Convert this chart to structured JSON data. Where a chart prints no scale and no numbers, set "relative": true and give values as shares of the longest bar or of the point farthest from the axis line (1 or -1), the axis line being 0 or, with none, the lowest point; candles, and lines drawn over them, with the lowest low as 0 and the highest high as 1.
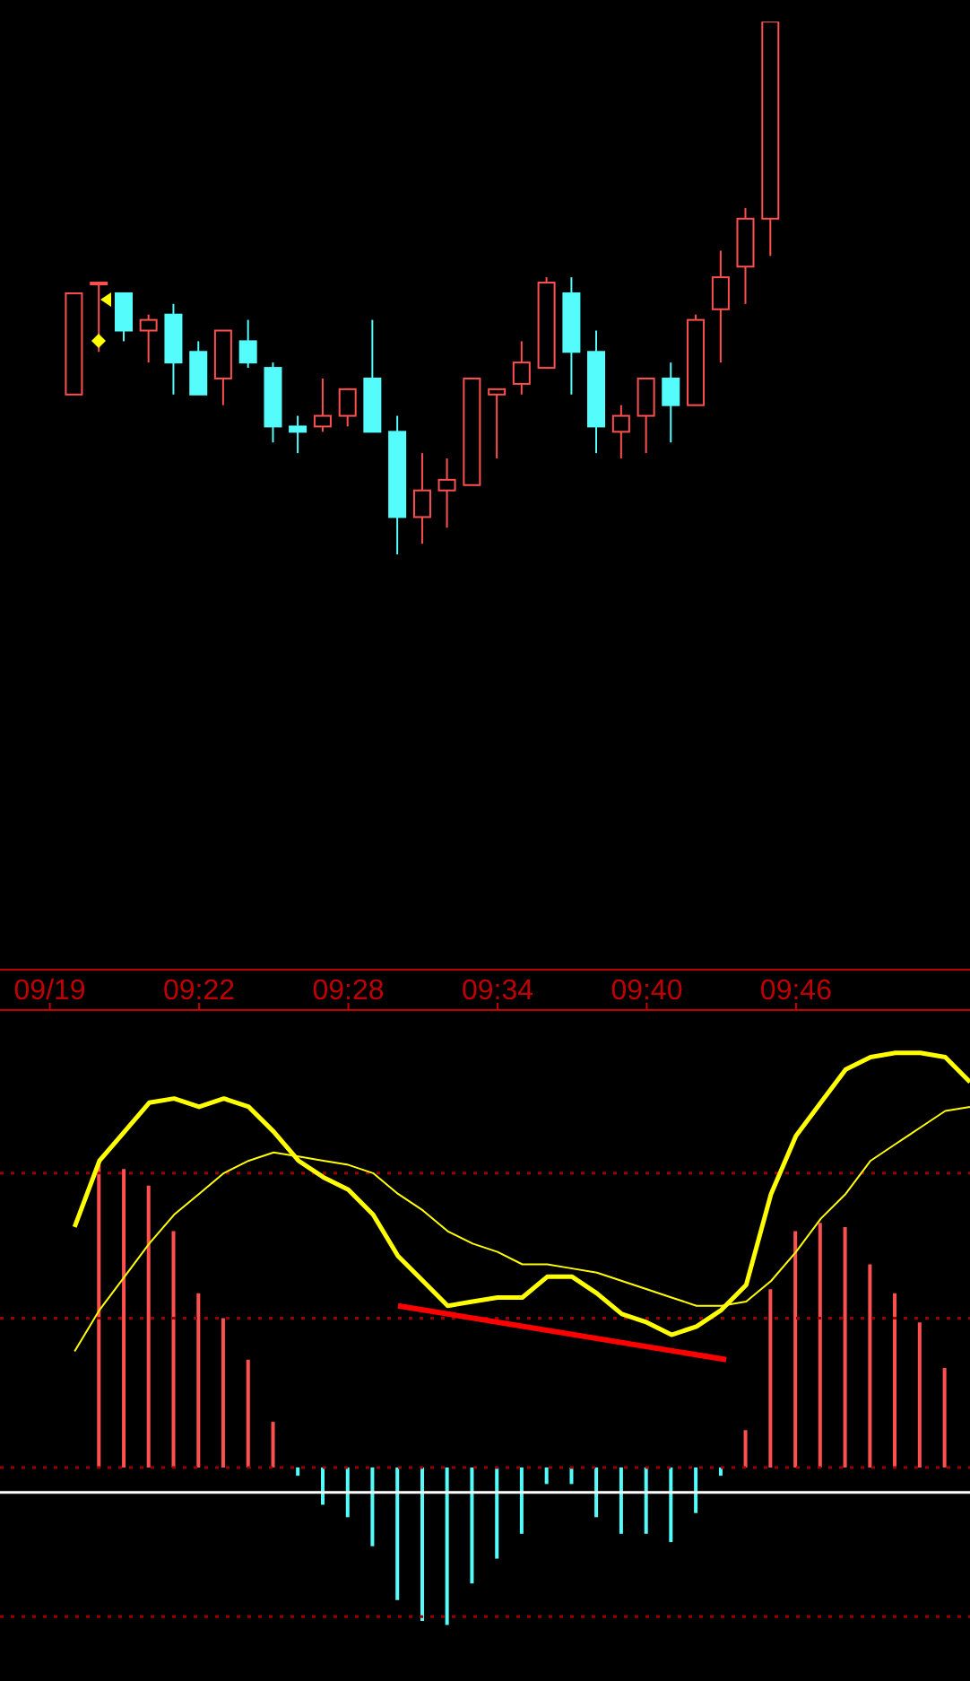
{
  "chart_data": [
    {
      "type": "candlestick",
      "relative": true,
      "xlim": [
        9.2333,
        9.8833
      ],
      "x": [
        9.2833,
        9.3,
        9.3167,
        9.3333,
        9.35,
        9.3667,
        9.3833,
        9.4,
        9.4167,
        9.4333,
        9.45,
        9.4667,
        9.4833,
        9.5,
        9.5167,
        9.5333,
        9.55,
        9.5667,
        9.5833,
        9.6,
        9.6167,
        9.6333,
        9.65,
        9.6667,
        9.6833,
        9.7,
        9.7167,
        9.7333,
        9.75
      ],
      "ohlc": [
        [
          0.3,
          0.49,
          0.3,
          0.49
        ],
        [
          0.51,
          0.51,
          0.38,
          0.51
        ],
        [
          0.49,
          0.49,
          0.4,
          0.42
        ],
        [
          0.42,
          0.45,
          0.36,
          0.44
        ],
        [
          0.45,
          0.47,
          0.3,
          0.36
        ],
        [
          0.38,
          0.4,
          0.3,
          0.3
        ],
        [
          0.33,
          0.42,
          0.28,
          0.42
        ],
        [
          0.4,
          0.44,
          0.35,
          0.36
        ],
        [
          0.35,
          0.36,
          0.21,
          0.24
        ],
        [
          0.24,
          0.26,
          0.19,
          0.23
        ],
        [
          0.24,
          0.33,
          0.23,
          0.26
        ],
        [
          0.26,
          0.31,
          0.24,
          0.31
        ],
        [
          0.33,
          0.44,
          0.23,
          0.23
        ],
        [
          0.23,
          0.26,
          0,
          0.07
        ],
        [
          0.07,
          0.19,
          0.02,
          0.12
        ],
        [
          0.12,
          0.18,
          0.05,
          0.14
        ],
        [
          0.13,
          0.33,
          0.13,
          0.33
        ],
        [
          0.3,
          0.31,
          0.18,
          0.31
        ],
        [
          0.32,
          0.4,
          0.3,
          0.36
        ],
        [
          0.35,
          0.52,
          0.35,
          0.51
        ],
        [
          0.49,
          0.52,
          0.3,
          0.38
        ],
        [
          0.38,
          0.42,
          0.19,
          0.24
        ],
        [
          0.23,
          0.28,
          0.18,
          0.26
        ],
        [
          0.26,
          0.33,
          0.19,
          0.33
        ],
        [
          0.33,
          0.36,
          0.21,
          0.28
        ],
        [
          0.28,
          0.45,
          0.28,
          0.44
        ],
        [
          0.46,
          0.57,
          0.36,
          0.52
        ],
        [
          0.54,
          0.65,
          0.47,
          0.63
        ],
        [
          0.63,
          1,
          0.56,
          1
        ]
      ],
      "colors": [
        "#ff5050",
        "#ff5050",
        "#54fcfc",
        "#ff5050",
        "#54fcfc",
        "#54fcfc",
        "#ff5050",
        "#54fcfc",
        "#54fcfc",
        "#54fcfc",
        "#ff5050",
        "#ff5050",
        "#54fcfc",
        "#54fcfc",
        "#ff5050",
        "#ff5050",
        "#ff5050",
        "#ff5050",
        "#ff5050",
        "#ff5050",
        "#54fcfc",
        "#54fcfc",
        "#ff5050",
        "#ff5050",
        "#54fcfc",
        "#ff5050",
        "#ff5050",
        "#ff5050",
        "#ff5050"
      ]
    },
    {
      "type": "bar",
      "relative": true,
      "xlim": [
        9.2333,
        9.8833
      ],
      "xticks": [
        {
          "value": 9.2667,
          "label": "09/19"
        },
        {
          "value": 9.3667,
          "label": "09:22"
        },
        {
          "value": 9.4667,
          "label": "09:28"
        },
        {
          "value": 9.5667,
          "label": "09:34"
        },
        {
          "value": 9.6667,
          "label": "09:40"
        },
        {
          "value": 9.7667,
          "label": "09:46"
        }
      ],
      "ref_lines": [
        {
          "axis": "y",
          "value": 0.71,
          "color": "#9a0000",
          "line_style": "dotted"
        },
        {
          "axis": "y",
          "value": 0.36,
          "color": "#9a0000",
          "line_style": "dotted"
        },
        {
          "axis": "y",
          "value": 0,
          "color": "#9a0000",
          "line_style": "dotted"
        },
        {
          "axis": "y",
          "value": -0.36,
          "color": "#9a0000",
          "line_style": "dotted"
        },
        {
          "axis": "y",
          "value": -0.06,
          "color": "#ffffff",
          "line_style": "solid"
        }
      ],
      "series": [
        {
          "type": "bar",
          "x": [
            9.3,
            9.3167,
            9.3333,
            9.35,
            9.3667,
            9.3833,
            9.4,
            9.4167,
            9.4333,
            9.45,
            9.4667,
            9.4833,
            9.5,
            9.5167,
            9.5333,
            9.55,
            9.5667,
            9.5833,
            9.6,
            9.6167,
            9.6333,
            9.65,
            9.6667,
            9.6833,
            9.7,
            9.7167,
            9.7333,
            9.75,
            9.7667,
            9.7833,
            9.8,
            9.8167,
            9.8333,
            9.85,
            9.8667
          ],
          "values": [
            0.73,
            0.72,
            0.68,
            0.57,
            0.42,
            0.36,
            0.26,
            0.11,
            -0.02,
            -0.09,
            -0.12,
            -0.19,
            -0.32,
            -0.37,
            -0.38,
            -0.28,
            -0.22,
            -0.16,
            -0.04,
            -0.04,
            -0.12,
            -0.16,
            -0.16,
            -0.18,
            -0.11,
            -0.02,
            0.09,
            0.43,
            0.57,
            0.59,
            0.58,
            0.49,
            0.42,
            0.35,
            0.24
          ],
          "colors": [
            "#ff5050",
            "#ff5050",
            "#ff5050",
            "#ff5050",
            "#ff5050",
            "#ff5050",
            "#ff5050",
            "#ff5050",
            "#54fcfc",
            "#54fcfc",
            "#54fcfc",
            "#54fcfc",
            "#54fcfc",
            "#54fcfc",
            "#54fcfc",
            "#54fcfc",
            "#54fcfc",
            "#54fcfc",
            "#54fcfc",
            "#54fcfc",
            "#54fcfc",
            "#54fcfc",
            "#54fcfc",
            "#54fcfc",
            "#54fcfc",
            "#54fcfc",
            "#ff5050",
            "#ff5050",
            "#ff5050",
            "#ff5050",
            "#ff5050",
            "#ff5050",
            "#ff5050",
            "#ff5050",
            "#ff5050"
          ]
        },
        {
          "type": "line",
          "color": "#ffff00",
          "x": [
            9.2833,
            9.3,
            9.3167,
            9.3333,
            9.35,
            9.3667,
            9.3833,
            9.4,
            9.4167,
            9.4333,
            9.45,
            9.4667,
            9.4833,
            9.5,
            9.5167,
            9.5333,
            9.55,
            9.5667,
            9.5833,
            9.6,
            9.6167,
            9.6333,
            9.65,
            9.6667,
            9.6833,
            9.7,
            9.7167,
            9.7333,
            9.75,
            9.7667,
            9.7833,
            9.8,
            9.8167,
            9.8333,
            9.85,
            9.8667,
            9.8833
          ],
          "values": [
            0.58,
            0.74,
            0.81,
            0.88,
            0.89,
            0.87,
            0.89,
            0.87,
            0.81,
            0.74,
            0.7,
            0.67,
            0.61,
            0.51,
            0.45,
            0.39,
            0.4,
            0.41,
            0.41,
            0.46,
            0.46,
            0.42,
            0.37,
            0.35,
            0.32,
            0.34,
            0.38,
            0.44,
            0.66,
            0.8,
            0.88,
            0.96,
            0.99,
            1.0,
            1.0,
            0.99,
            0.93
          ]
        },
        {
          "type": "line",
          "color": "#ffff00",
          "x": [
            9.2833,
            9.3,
            9.3167,
            9.3333,
            9.35,
            9.3667,
            9.3833,
            9.4,
            9.4167,
            9.4333,
            9.45,
            9.4667,
            9.4833,
            9.5,
            9.5167,
            9.5333,
            9.55,
            9.5667,
            9.5833,
            9.6,
            9.6167,
            9.6333,
            9.65,
            9.6667,
            9.6833,
            9.7,
            9.7167,
            9.7333,
            9.75,
            9.7667,
            9.7833,
            9.8,
            9.8167,
            9.8333,
            9.85,
            9.8667,
            9.8833
          ],
          "values": [
            0.28,
            0.38,
            0.46,
            0.54,
            0.61,
            0.66,
            0.71,
            0.74,
            0.76,
            0.75,
            0.74,
            0.73,
            0.71,
            0.66,
            0.62,
            0.57,
            0.54,
            0.52,
            0.49,
            0.49,
            0.48,
            0.47,
            0.45,
            0.43,
            0.41,
            0.39,
            0.39,
            0.4,
            0.45,
            0.52,
            0.6,
            0.66,
            0.74,
            0.78,
            0.82,
            0.86,
            0.87
          ]
        },
        {
          "type": "line",
          "color": "#ff0000",
          "x": [
            9.5,
            9.72
          ],
          "values": [
            0.39,
            0.26
          ]
        }
      ]
    }
  ]
}
